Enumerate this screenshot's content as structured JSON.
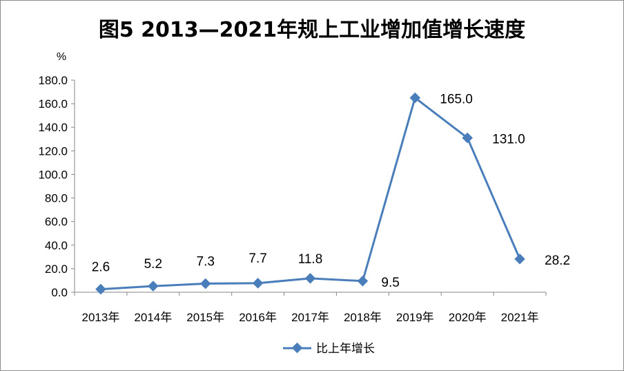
{
  "chart_data": {
    "type": "line",
    "title": "图5  2013—2021年规上工业增加值增长速度",
    "ylabel": "%",
    "xlabel": "",
    "categories": [
      "2013年",
      "2014年",
      "2015年",
      "2016年",
      "2017年",
      "2018年",
      "2019年",
      "2020年",
      "2021年"
    ],
    "series": [
      {
        "name": "比上年增长",
        "values": [
          2.6,
          5.2,
          7.3,
          7.7,
          11.8,
          9.5,
          165.0,
          131.0,
          28.2
        ],
        "labels": [
          "2.6",
          "5.2",
          "7.3",
          "7.7",
          "11.8",
          "9.5",
          "165.0",
          "131.0",
          "28.2"
        ],
        "color": "#4a7ebb"
      }
    ],
    "ylim": [
      0,
      180
    ],
    "yticks": [
      "0.0",
      "20.0",
      "40.0",
      "60.0",
      "80.0",
      "100.0",
      "120.0",
      "140.0",
      "160.0",
      "180.0"
    ],
    "grid": false,
    "legend_position": "bottom"
  }
}
